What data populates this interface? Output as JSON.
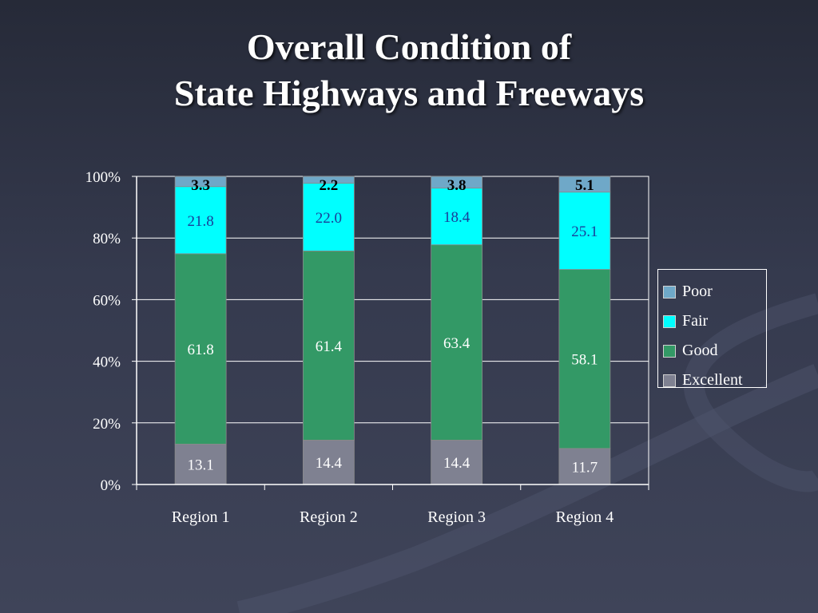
{
  "slide": {
    "title_line1": "Overall Condition of",
    "title_line2": "State Highways and Freeways"
  },
  "chart_data": {
    "type": "bar",
    "stacked": true,
    "percent_stacked": true,
    "categories": [
      "Region 1",
      "Region 2",
      "Region 3",
      "Region 4"
    ],
    "series": [
      {
        "name": "Excellent",
        "values": [
          13.1,
          14.4,
          14.4,
          11.7
        ],
        "color": "#7f8191",
        "label_color": "#ffffff"
      },
      {
        "name": "Good",
        "values": [
          61.8,
          61.4,
          63.4,
          58.1
        ],
        "color": "#339966",
        "label_color": "#ffffff"
      },
      {
        "name": "Fair",
        "values": [
          21.8,
          22.0,
          18.4,
          25.1
        ],
        "color": "#00ffff",
        "label_color": "#1a3d99"
      },
      {
        "name": "Poor",
        "values": [
          3.3,
          2.2,
          3.8,
          5.1
        ],
        "color": "#6fa8c8",
        "label_color": "#000000"
      }
    ],
    "data_labels": [
      [
        "13.1",
        "14.4",
        "14.4",
        "11.7"
      ],
      [
        "61.8",
        "61.4",
        "63.4",
        "58.1"
      ],
      [
        "21.8",
        "22.0",
        "18.4",
        "25.1"
      ],
      [
        "3.3",
        "2.2",
        "3.8",
        "5.1"
      ]
    ],
    "ytick_labels": [
      "0%",
      "20%",
      "40%",
      "60%",
      "80%",
      "100%"
    ],
    "ylim": [
      0,
      100
    ],
    "grid": true,
    "legend_position": "right",
    "legend_order": [
      "Poor",
      "Fair",
      "Good",
      "Excellent"
    ],
    "title": "",
    "xlabel": "",
    "ylabel": ""
  }
}
